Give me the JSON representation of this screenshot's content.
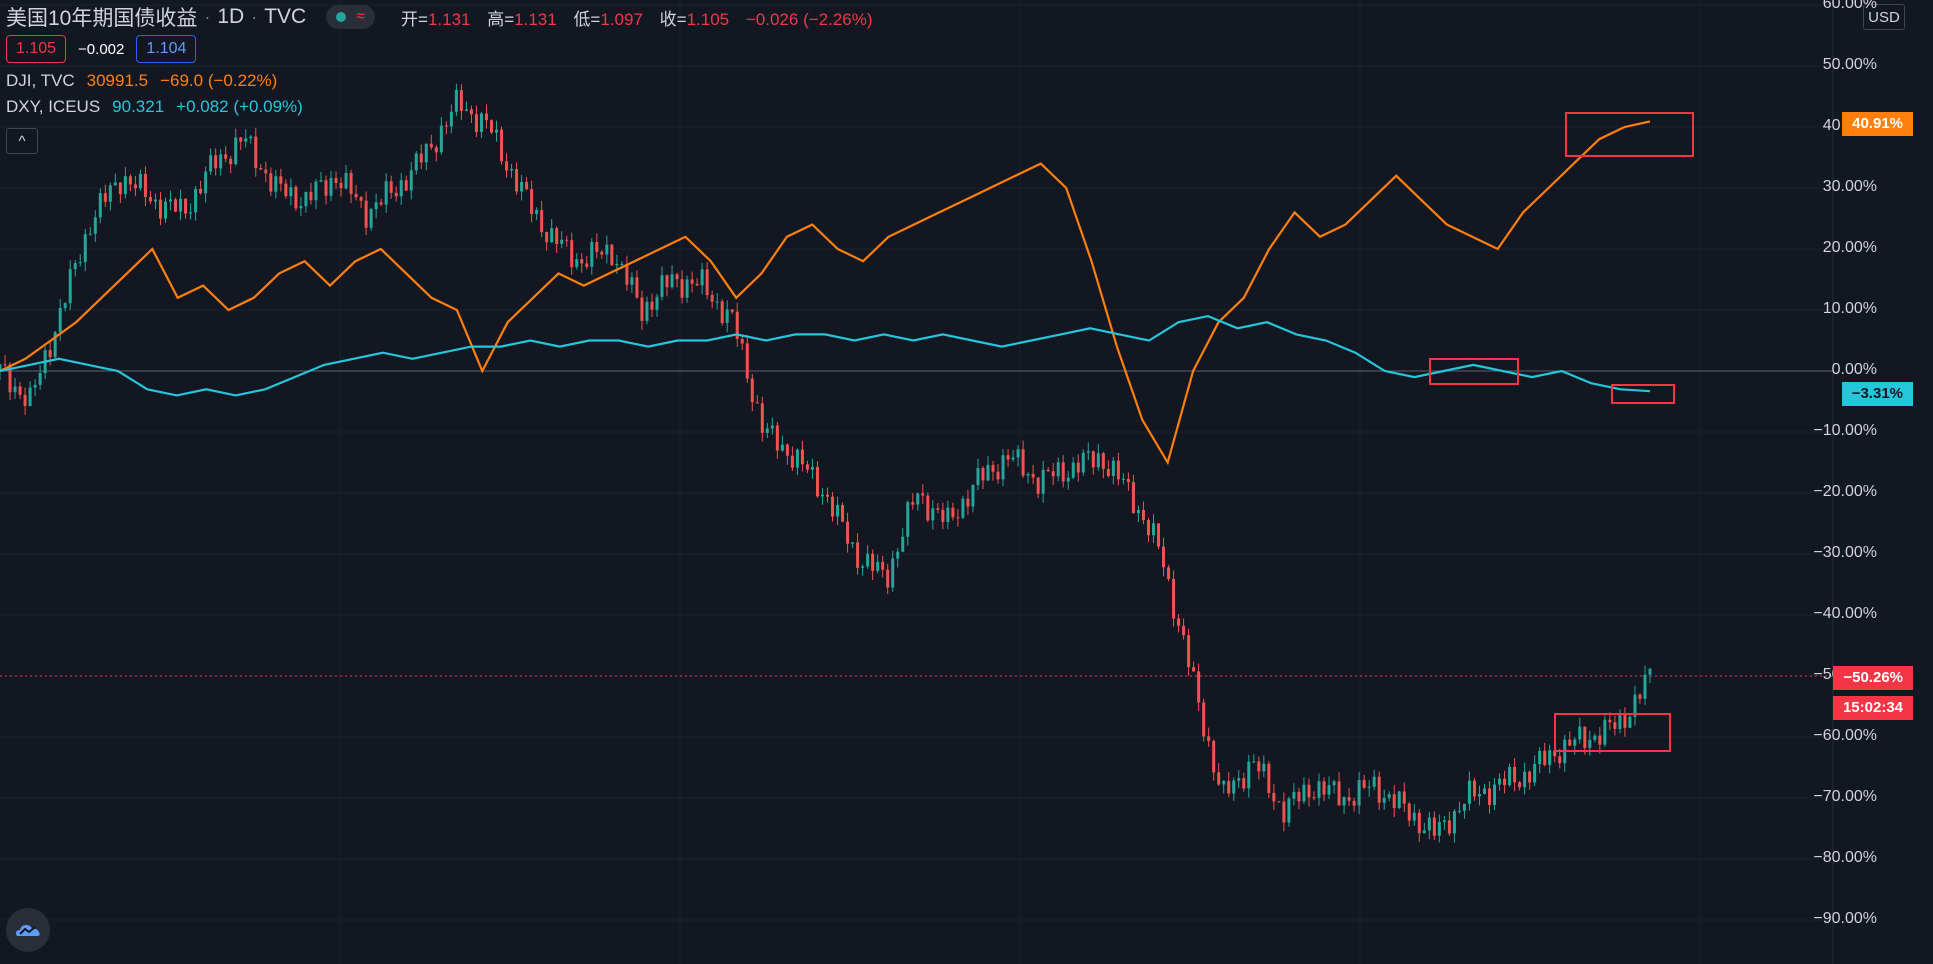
{
  "header": {
    "symbol_title": "美国10年期国债收益",
    "interval": "1D",
    "exchange": "TVC",
    "ohlc": [
      {
        "label": "开=",
        "value": "1.131"
      },
      {
        "label": "高=",
        "value": "1.131"
      },
      {
        "label": "低=",
        "value": "1.097"
      },
      {
        "label": "收=",
        "value": "1.105"
      }
    ],
    "change": "−0.026 (−2.26%)"
  },
  "quote": {
    "bid": "1.105",
    "spread": "−0.002",
    "ask": "1.104"
  },
  "compare_series": [
    {
      "name": "DJI, TVC",
      "value": "30991.5",
      "change": "−69.0 (−0.22%)",
      "color": "#ff7f0e"
    },
    {
      "name": "DXY, ICEUS",
      "value": "90.321",
      "change": "+0.082 (+0.09%)",
      "color": "#26c6da"
    }
  ],
  "collapse_button": "^",
  "currency_label": "USD",
  "price_axis_labels": [
    "60.00%",
    "50.00%",
    "40.00%",
    "30.00%",
    "20.00%",
    "10.00%",
    "0.00%",
    "−10.00%",
    "−20.00%",
    "−30.00%",
    "−40.00%",
    "−50.00%",
    "−60.00%",
    "−70.00%",
    "−80.00%",
    "−90.00%"
  ],
  "last_value_tags": {
    "dji": "40.91%",
    "dxy": "−3.31%",
    "main": "−50.26%",
    "countdown": "15:02:34"
  },
  "colors": {
    "background": "#131722",
    "main_up": "#26a69a",
    "main_down": "#ef5350",
    "dji": "#ff7f0e",
    "dxy": "#26c6da",
    "annotation": "#f23645"
  },
  "chart_data": {
    "type": "line",
    "ylim": [
      -90,
      60
    ],
    "series": [
      {
        "name": "DJI, TVC",
        "values": [
          0,
          2,
          5,
          8,
          12,
          16,
          20,
          12,
          14,
          10,
          12,
          16,
          18,
          14,
          18,
          20,
          16,
          12,
          10,
          0,
          8,
          12,
          16,
          14,
          16,
          18,
          20,
          22,
          18,
          12,
          16,
          22,
          24,
          20,
          18,
          22,
          24,
          26,
          28,
          30,
          32,
          34,
          30,
          18,
          4,
          -8,
          -15,
          0,
          8,
          12,
          20,
          26,
          22,
          24,
          28,
          32,
          28,
          24,
          22,
          20,
          26,
          30,
          34,
          38,
          40,
          40.91
        ]
      },
      {
        "name": "DXY, ICEUS",
        "values": [
          0,
          1,
          2,
          1,
          0,
          -3,
          -4,
          -3,
          -4,
          -3,
          -1,
          1,
          2,
          3,
          2,
          3,
          4,
          4,
          5,
          4,
          5,
          5,
          4,
          5,
          5,
          6,
          5,
          6,
          6,
          5,
          6,
          5,
          6,
          5,
          4,
          5,
          6,
          7,
          6,
          5,
          8,
          9,
          7,
          8,
          6,
          5,
          3,
          0,
          -1,
          0,
          1,
          0,
          -1,
          0,
          -2,
          -3,
          -3.31
        ]
      },
      {
        "name": "美国10年期国债收益",
        "values": [
          0,
          -5,
          10,
          25,
          32,
          28,
          26,
          34,
          38,
          30,
          28,
          32,
          26,
          30,
          36,
          44,
          40,
          30,
          22,
          18,
          20,
          10,
          15,
          14,
          8,
          -10,
          -14,
          -20,
          -30,
          -34,
          -20,
          -25,
          -18,
          -14,
          -18,
          -16,
          -14,
          -20,
          -30,
          -50,
          -70,
          -64,
          -72,
          -68,
          -70,
          -68,
          -72,
          -76,
          -70,
          -68,
          -66,
          -62,
          -60,
          -58,
          -50.26
        ]
      }
    ]
  }
}
